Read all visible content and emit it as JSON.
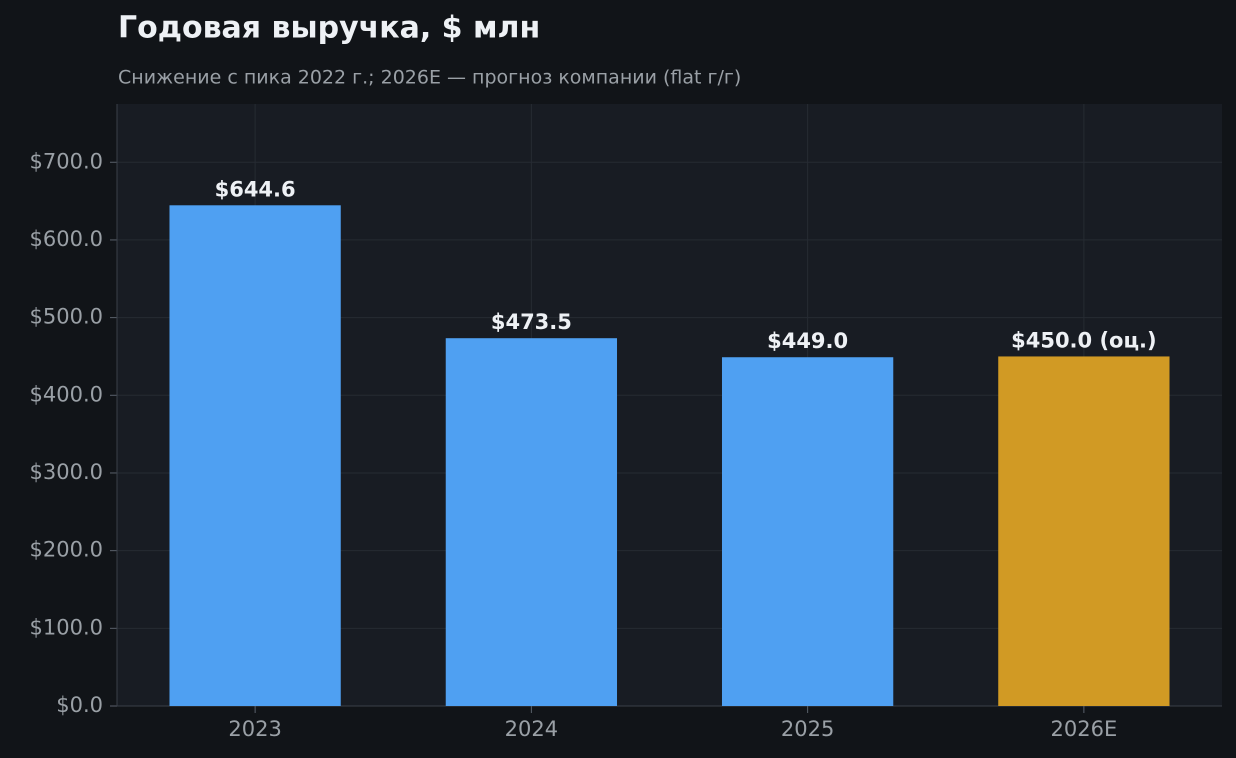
{
  "chart_data": {
    "type": "bar",
    "title": "Годовая выручка, $ млн",
    "subtitle": "Снижение с пика 2022 г.; 2026E — прогноз компании (flat г/г)",
    "categories": [
      "2023",
      "2024",
      "2025",
      "2026E"
    ],
    "values": [
      644.6,
      473.5,
      449.0,
      450.0
    ],
    "value_labels": [
      "$644.6",
      "$473.5",
      "$449.0",
      "$450.0 (оц.)"
    ],
    "colors": [
      "#4fa0f2",
      "#4fa0f2",
      "#4fa0f2",
      "#d19a24"
    ],
    "ylim": [
      0,
      775
    ],
    "yticks": [
      {
        "value": 0,
        "label": "$0.0"
      },
      {
        "value": 100,
        "label": "$100.0"
      },
      {
        "value": 200,
        "label": "$200.0"
      },
      {
        "value": 300,
        "label": "$300.0"
      },
      {
        "value": 400,
        "label": "$400.0"
      },
      {
        "value": 500,
        "label": "$500.0"
      },
      {
        "value": 600,
        "label": "$600.0"
      },
      {
        "value": 700,
        "label": "$700.0"
      }
    ],
    "grid": true
  }
}
